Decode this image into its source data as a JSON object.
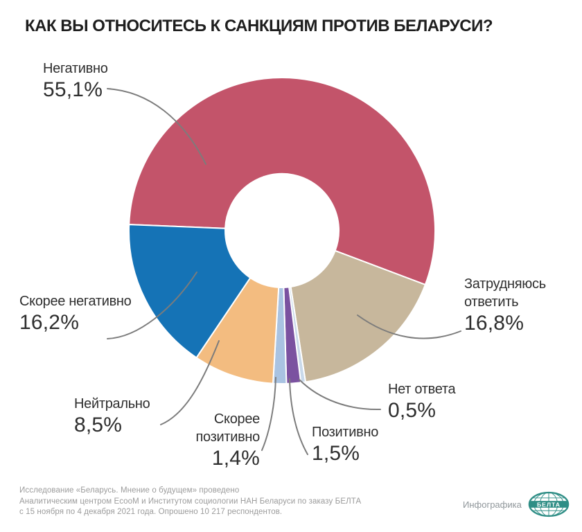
{
  "title": "КАК ВЫ ОТНОСИТЕСЬ К САНКЦИЯМ ПРОТИВ БЕЛАРУСИ?",
  "chart_data": {
    "type": "pie",
    "subtype": "donut",
    "title": "КАК ВЫ ОТНОСИТЕСЬ К САНКЦИЯМ ПРОТИВ БЕЛАРУСИ?",
    "units": "%",
    "direction": "clockwise",
    "start_angle_deg": 272.3,
    "slices": [
      {
        "label": "Негативно",
        "value": 55.1,
        "display": "55,1%",
        "color": "#c3546a"
      },
      {
        "label": "Затрудняюсь ответить",
        "value": 16.8,
        "display": "16,8%",
        "color": "#c7b79c"
      },
      {
        "label": "Нет ответа",
        "value": 0.5,
        "display": "0,5%",
        "color": "#c9d9ea"
      },
      {
        "label": "Позитивно",
        "value": 1.5,
        "display": "1,5%",
        "color": "#7b52a0"
      },
      {
        "label": "Скорее позитивно",
        "value": 1.4,
        "display": "1,4%",
        "color": "#a9c3e2"
      },
      {
        "label": "Нейтрально",
        "value": 8.5,
        "display": "8,5%",
        "color": "#f3bc80"
      },
      {
        "label": "Скорее негативно",
        "value": 16.2,
        "display": "16,2%",
        "color": "#1573b6"
      }
    ],
    "leader_line_color": "#7c7c7c",
    "legend": "none"
  },
  "footer": {
    "lines": [
      "Исследование «Беларусь. Мнение о будущем» проведено",
      "Аналитическим центром EcooM и Институтом социологии НАН Беларуси по заказу БЕЛТА",
      "с 15 ноября по 4 декабря 2021 года. Опрошено 10 217 респондентов."
    ]
  },
  "branding": {
    "credit_label": "Инфографика",
    "logo_text": "БЕЛТА",
    "logo_color": "#2f8e86"
  }
}
